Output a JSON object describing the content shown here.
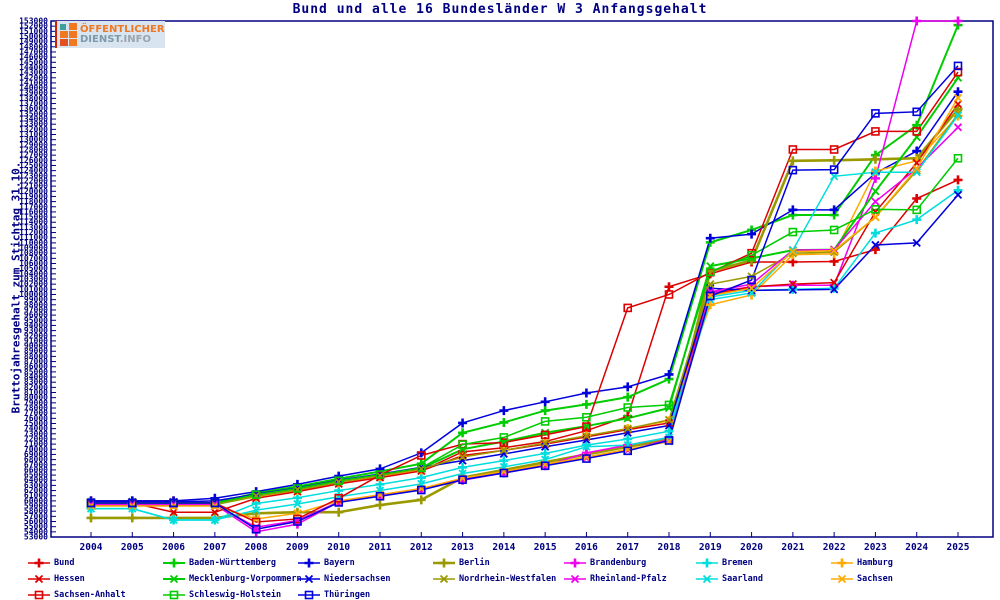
{
  "title": "Bund und alle 16 Bundesländer W 3 Anfangsgehalt",
  "y_axis_title": "Bruttojahresgehalt zum Stichtag 31.10.",
  "logo": {
    "line1": "ÖFFENTLICHER",
    "line2": "DIENST",
    "line2_suffix": ".INFO"
  },
  "colors": {
    "axis": "#000080",
    "red": "#dd0000",
    "green": "#00cc00",
    "blue": "#0000dd",
    "olive": "#9a9a00",
    "magenta": "#ee00ee",
    "cyan": "#00dddd",
    "orange": "#ffaa00"
  },
  "chart_data": {
    "type": "line",
    "title": "Bund und alle 16 Bundesländer W 3 Anfangsgehalt",
    "xlabel": "",
    "ylabel": "Bruttojahresgehalt zum Stichtag 31.10.",
    "ylim": [
      53000,
      153000
    ],
    "ytick_step": 1000,
    "grid": false,
    "legend_position": "bottom",
    "years": [
      2004,
      2005,
      2006,
      2007,
      2008,
      2009,
      2010,
      2011,
      2012,
      2013,
      2014,
      2015,
      2016,
      2017,
      2018,
      2019,
      2020,
      2021,
      2022,
      2023,
      2024,
      2025
    ],
    "series": [
      {
        "name": "Bund",
        "color": "#dd0000",
        "marker": "plus",
        "width": 1.5,
        "values": [
          60000,
          60000,
          60000,
          59600,
          61000,
          62200,
          63600,
          64700,
          65800,
          69500,
          70300,
          71500,
          73600,
          76400,
          101500,
          104000,
          106300,
          106300,
          106400,
          108700,
          118600,
          122200
        ]
      },
      {
        "name": "Baden-Württemberg",
        "color": "#00cc00",
        "marker": "plus",
        "width": 2,
        "values": [
          59600,
          59600,
          59600,
          59600,
          61500,
          62800,
          64300,
          65700,
          67200,
          73200,
          75200,
          77500,
          78700,
          80100,
          83600,
          110100,
          112500,
          115400,
          115400,
          127000,
          132800,
          152200
        ]
      },
      {
        "name": "Bayern",
        "color": "#0000dd",
        "marker": "plus",
        "width": 1.5,
        "values": [
          60000,
          60000,
          60000,
          60500,
          61800,
          63200,
          64800,
          66200,
          69300,
          75100,
          77500,
          79200,
          80900,
          82100,
          84500,
          110900,
          111700,
          116400,
          116400,
          123500,
          127800,
          139300
        ]
      },
      {
        "name": "Berlin",
        "color": "#9a9a00",
        "marker": "plus",
        "width": 2.6,
        "values": [
          56700,
          56700,
          56700,
          56700,
          57600,
          57800,
          57800,
          59200,
          60200,
          64500,
          66000,
          67500,
          69000,
          70500,
          71900,
          104500,
          106600,
          125900,
          126000,
          126200,
          126400,
          135900
        ]
      },
      {
        "name": "Brandenburg",
        "color": "#ee00ee",
        "marker": "plus",
        "width": 1.5,
        "values": [
          59300,
          59300,
          59300,
          59300,
          54000,
          55500,
          59800,
          61000,
          62200,
          64000,
          65400,
          66800,
          69300,
          70800,
          72300,
          100300,
          101500,
          101800,
          101800,
          122500,
          153000,
          153000
        ]
      },
      {
        "name": "Bremen",
        "color": "#00dddd",
        "marker": "plus",
        "width": 1.5,
        "values": [
          58500,
          58500,
          56300,
          56300,
          59500,
          60600,
          62000,
          63200,
          64500,
          66500,
          67800,
          69200,
          70800,
          72000,
          73500,
          99500,
          100800,
          101000,
          101200,
          111900,
          114500,
          120200
        ]
      },
      {
        "name": "Hamburg",
        "color": "#ffaa00",
        "marker": "plus",
        "width": 1.5,
        "values": [
          59300,
          59300,
          59300,
          59300,
          60800,
          62000,
          63500,
          64700,
          66000,
          68500,
          69800,
          71200,
          72600,
          74000,
          75500,
          98000,
          99900,
          107700,
          107900,
          123900,
          125900,
          134600
        ]
      },
      {
        "name": "Hessen",
        "color": "#dd0000",
        "marker": "x",
        "width": 1.5,
        "values": [
          59600,
          59600,
          57800,
          57800,
          60500,
          61800,
          63300,
          64500,
          65800,
          68800,
          69800,
          71000,
          72400,
          73800,
          75100,
          100000,
          101500,
          102000,
          102300,
          116000,
          125500,
          136900
        ]
      },
      {
        "name": "Mecklenburg-Vorpommern",
        "color": "#00cc00",
        "marker": "x",
        "width": 2,
        "values": [
          59300,
          59300,
          59300,
          59300,
          61000,
          62200,
          63700,
          65000,
          66300,
          70000,
          71500,
          73200,
          74500,
          76000,
          78000,
          105500,
          107000,
          108600,
          108700,
          120000,
          130500,
          142000
        ]
      },
      {
        "name": "Niedersachsen",
        "color": "#0000dd",
        "marker": "x",
        "width": 1.5,
        "values": [
          59800,
          59800,
          59800,
          60000,
          61300,
          62500,
          64000,
          65200,
          66500,
          67800,
          69100,
          70500,
          71800,
          73200,
          74600,
          101200,
          100800,
          100900,
          101000,
          109600,
          110000,
          119300
        ]
      },
      {
        "name": "Nordrhein-Westfalen",
        "color": "#9a9a00",
        "marker": "x",
        "width": 1.5,
        "values": [
          59300,
          59300,
          59300,
          59300,
          61000,
          62200,
          63700,
          64900,
          66200,
          68500,
          69800,
          71200,
          72600,
          74000,
          75700,
          102000,
          103500,
          108000,
          108200,
          115000,
          124000,
          135000
        ]
      },
      {
        "name": "Rheinland-Pfalz",
        "color": "#ee00ee",
        "marker": "x",
        "width": 1.5,
        "values": [
          59300,
          59300,
          59300,
          59300,
          54900,
          56200,
          59800,
          61000,
          62200,
          64200,
          65500,
          66900,
          68300,
          69800,
          71900,
          100500,
          102000,
          108600,
          108700,
          118000,
          124400,
          132400
        ]
      },
      {
        "name": "Saarland",
        "color": "#00dddd",
        "marker": "x",
        "width": 1.5,
        "values": [
          58500,
          58500,
          56300,
          56300,
          58200,
          59400,
          60800,
          62000,
          63300,
          65300,
          66600,
          68000,
          70500,
          70800,
          72300,
          99000,
          100300,
          108600,
          122900,
          123700,
          123700,
          134700
        ]
      },
      {
        "name": "Sachsen",
        "color": "#ffaa00",
        "marker": "x",
        "width": 1.5,
        "values": [
          59000,
          59000,
          59000,
          59000,
          56500,
          57600,
          60000,
          61200,
          62400,
          64400,
          65700,
          67100,
          68500,
          70000,
          71500,
          99800,
          101200,
          108300,
          108500,
          115000,
          124400,
          138100
        ]
      },
      {
        "name": "Sachsen-Anhalt",
        "color": "#dd0000",
        "marker": "square",
        "width": 1.5,
        "values": [
          59600,
          59600,
          59600,
          59600,
          55900,
          56500,
          60500,
          65000,
          68800,
          71000,
          71300,
          72800,
          74400,
          97400,
          100000,
          104300,
          108000,
          128100,
          128100,
          131600,
          131600,
          143100
        ]
      },
      {
        "name": "Schleswig-Holstein",
        "color": "#00cc00",
        "marker": "square",
        "width": 1.5,
        "values": [
          59600,
          59600,
          59600,
          59600,
          61200,
          62400,
          63900,
          65100,
          66400,
          70900,
          72300,
          75400,
          76200,
          78100,
          78600,
          104400,
          107600,
          112100,
          112500,
          116500,
          116400,
          126400
        ]
      },
      {
        "name": "Thüringen",
        "color": "#0000dd",
        "marker": "square",
        "width": 1.5,
        "values": [
          59600,
          59600,
          59600,
          59600,
          54500,
          56000,
          59700,
          60900,
          62100,
          64100,
          65400,
          66800,
          68200,
          69700,
          71700,
          99700,
          102800,
          124100,
          124200,
          135100,
          135400,
          144300
        ]
      }
    ]
  }
}
